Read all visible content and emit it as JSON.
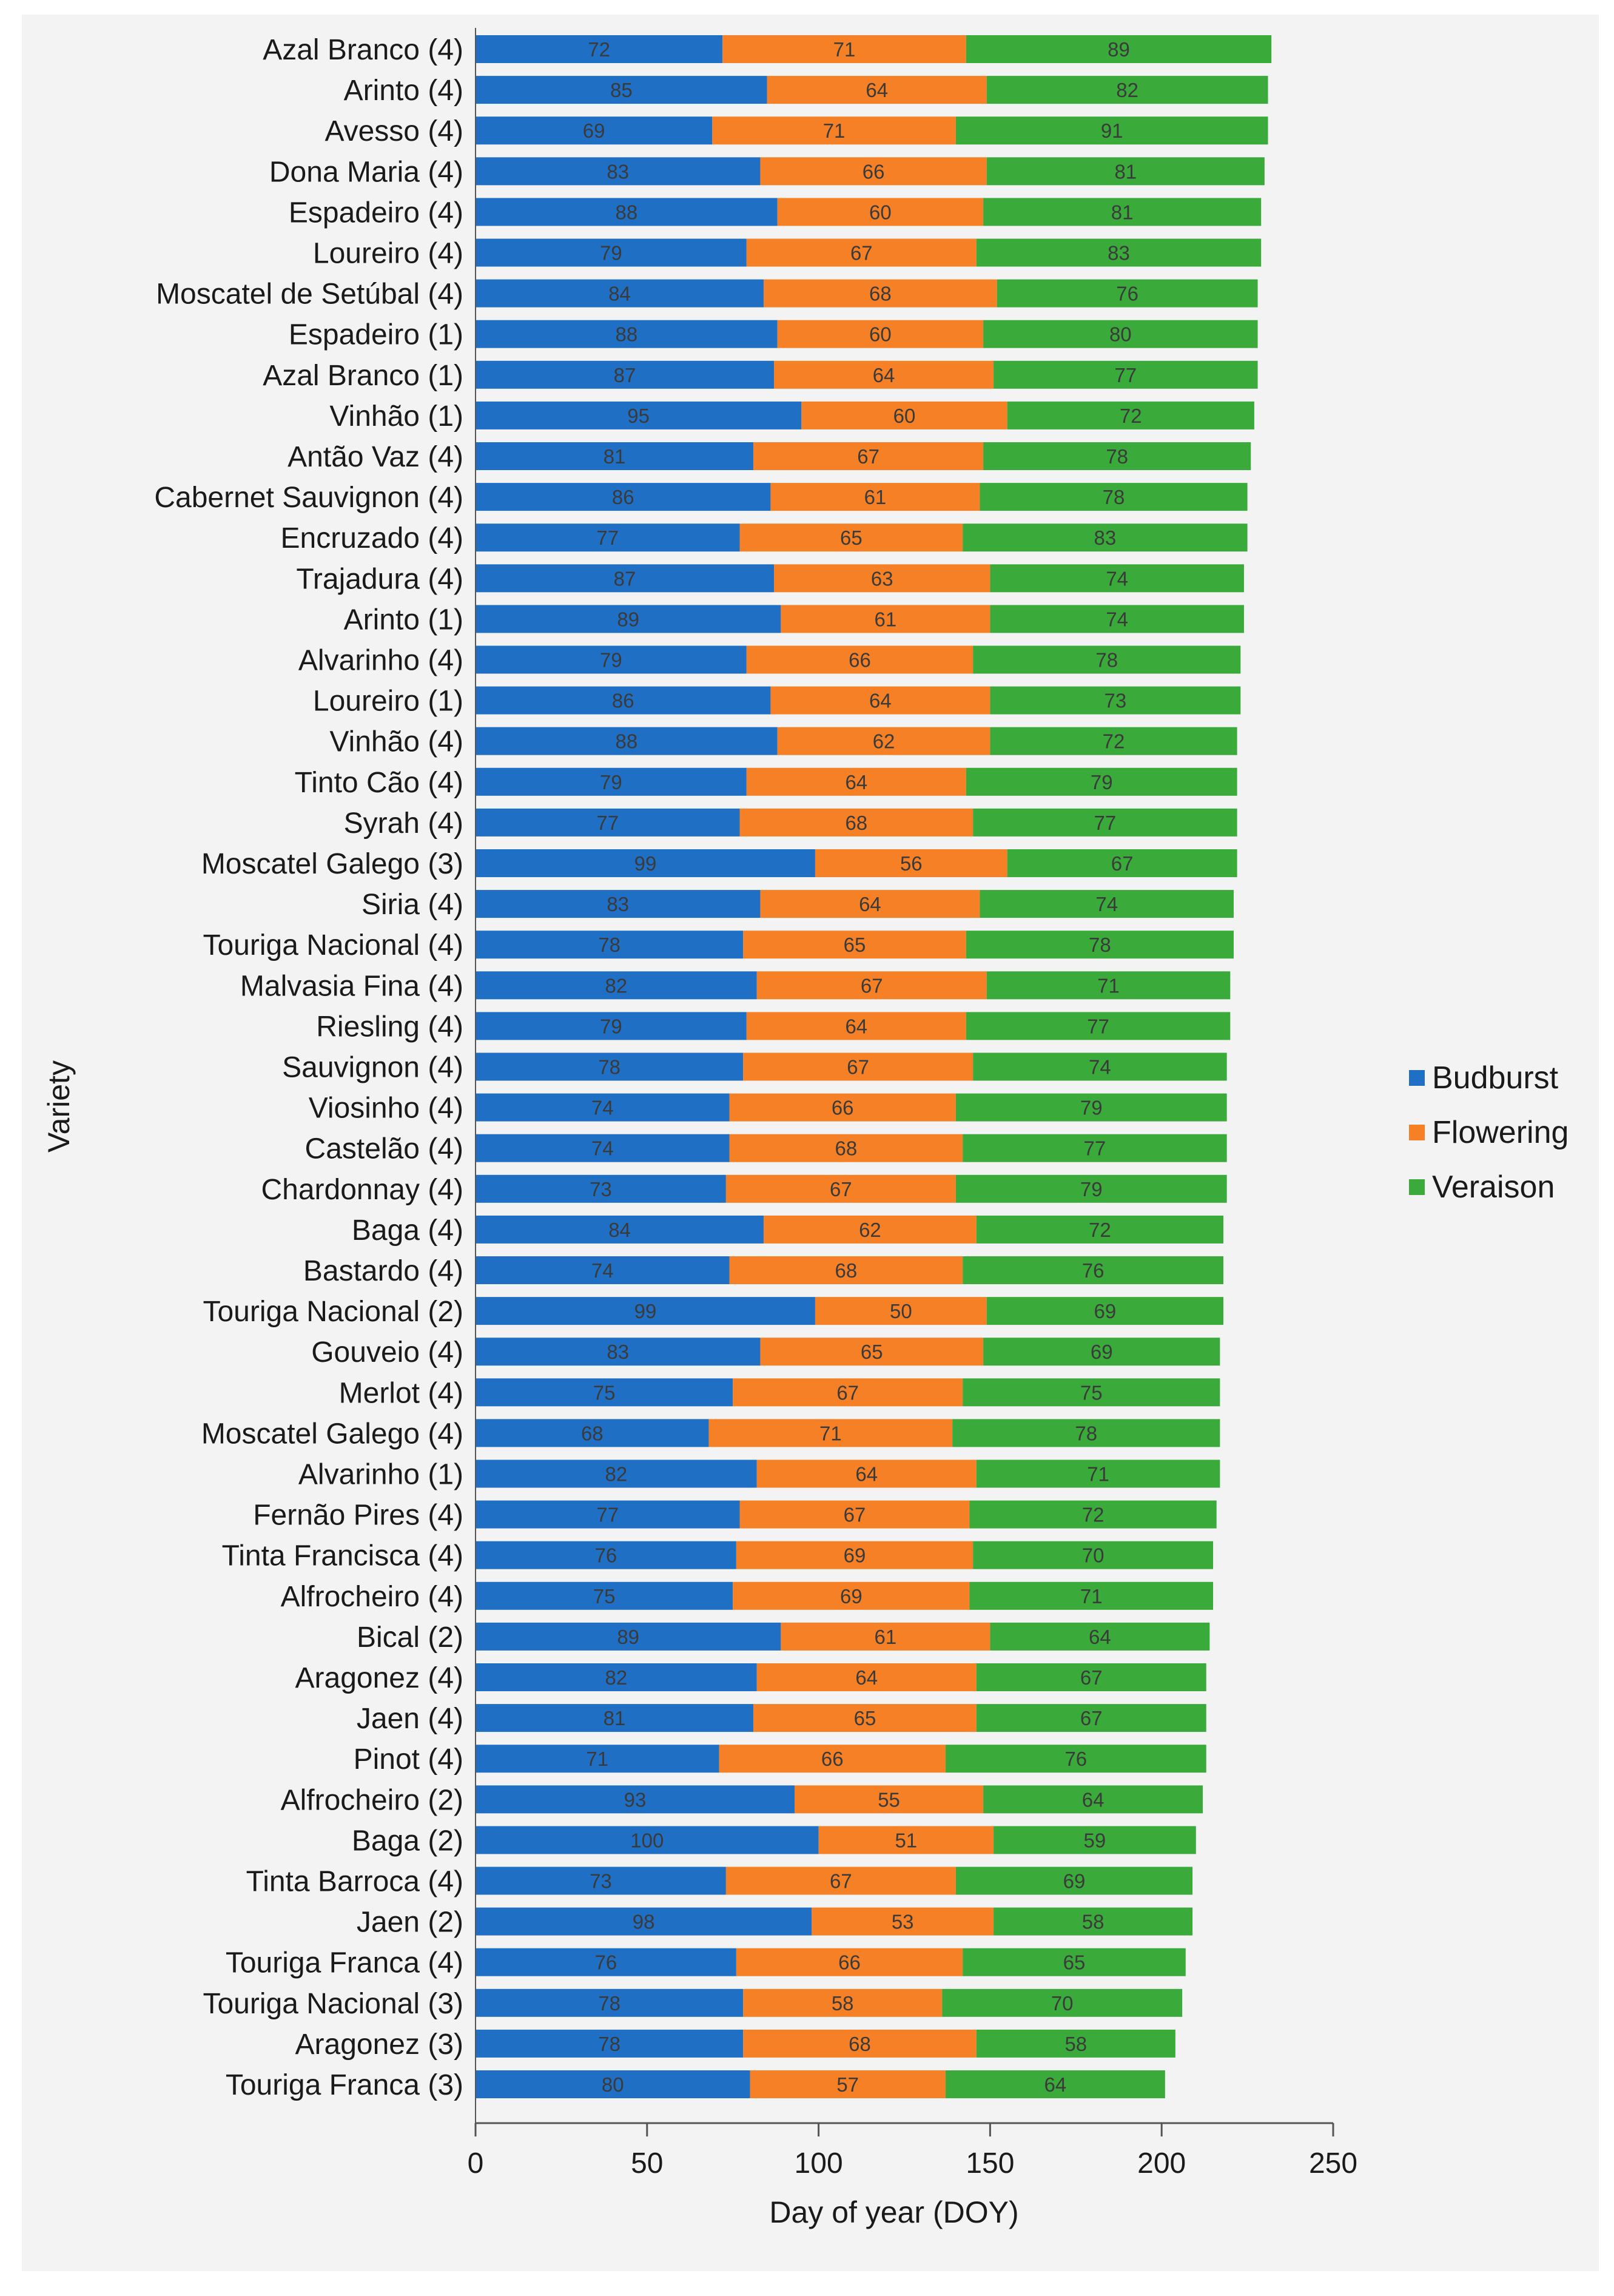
{
  "chart_data": {
    "type": "bar",
    "orientation": "horizontal",
    "stacked": true,
    "title": "",
    "xlabel": "Day of year (DOY)",
    "ylabel": "Variety",
    "xlim": [
      0,
      250
    ],
    "xticks": [
      0,
      50,
      100,
      150,
      200,
      250
    ],
    "legend_position": "right",
    "grid": false,
    "categories": [
      "Azal Branco (4)",
      "Arinto (4)",
      "Avesso (4)",
      "Dona Maria (4)",
      "Espadeiro (4)",
      "Loureiro (4)",
      "Moscatel de Setúbal (4)",
      "Espadeiro (1)",
      "Azal Branco (1)",
      "Vinhão (1)",
      "Antão Vaz (4)",
      "Cabernet Sauvignon (4)",
      "Encruzado (4)",
      "Trajadura (4)",
      "Arinto (1)",
      "Alvarinho (4)",
      "Loureiro (1)",
      "Vinhão (4)",
      "Tinto Cão (4)",
      "Syrah (4)",
      "Moscatel Galego (3)",
      "Siria (4)",
      "Touriga Nacional (4)",
      "Malvasia Fina (4)",
      "Riesling (4)",
      "Sauvignon (4)",
      "Viosinho (4)",
      "Castelão (4)",
      "Chardonnay (4)",
      "Baga (4)",
      "Bastardo (4)",
      "Touriga Nacional (2)",
      "Gouveio (4)",
      "Merlot (4)",
      "Moscatel Galego (4)",
      "Alvarinho (1)",
      "Fernão Pires (4)",
      "Tinta Francisca (4)",
      "Alfrocheiro (4)",
      "Bical (2)",
      "Aragonez (4)",
      "Jaen (4)",
      "Pinot (4)",
      "Alfrocheiro (2)",
      "Baga (2)",
      "Tinta Barroca (4)",
      "Jaen (2)",
      "Touriga Franca (4)",
      "Touriga Nacional (3)",
      "Aragonez (3)",
      "Touriga Franca (3)"
    ],
    "series": [
      {
        "name": "Budburst",
        "color": "#1f6fc5",
        "values": [
          72,
          85,
          69,
          83,
          88,
          79,
          84,
          88,
          87,
          95,
          81,
          86,
          77,
          87,
          89,
          79,
          86,
          88,
          79,
          77,
          99,
          83,
          78,
          82,
          79,
          78,
          74,
          74,
          73,
          84,
          74,
          99,
          83,
          75,
          68,
          82,
          77,
          76,
          75,
          89,
          82,
          81,
          71,
          93,
          100,
          73,
          98,
          76,
          78,
          78,
          80
        ]
      },
      {
        "name": "Flowering",
        "color": "#f58025",
        "values": [
          71,
          64,
          71,
          66,
          60,
          67,
          68,
          60,
          64,
          60,
          67,
          61,
          65,
          63,
          61,
          66,
          64,
          62,
          64,
          68,
          56,
          64,
          65,
          67,
          64,
          67,
          66,
          68,
          67,
          62,
          68,
          50,
          65,
          67,
          71,
          64,
          67,
          69,
          69,
          61,
          64,
          65,
          66,
          55,
          51,
          67,
          53,
          66,
          58,
          68,
          57
        ]
      },
      {
        "name": "Veraison",
        "color": "#3aab3a",
        "values": [
          89,
          82,
          91,
          81,
          81,
          83,
          76,
          80,
          77,
          72,
          78,
          78,
          83,
          74,
          74,
          78,
          73,
          72,
          79,
          77,
          67,
          74,
          78,
          71,
          77,
          74,
          79,
          77,
          79,
          72,
          76,
          69,
          69,
          75,
          78,
          71,
          72,
          70,
          71,
          64,
          67,
          67,
          76,
          64,
          59,
          69,
          58,
          65,
          70,
          58,
          64
        ]
      }
    ]
  }
}
